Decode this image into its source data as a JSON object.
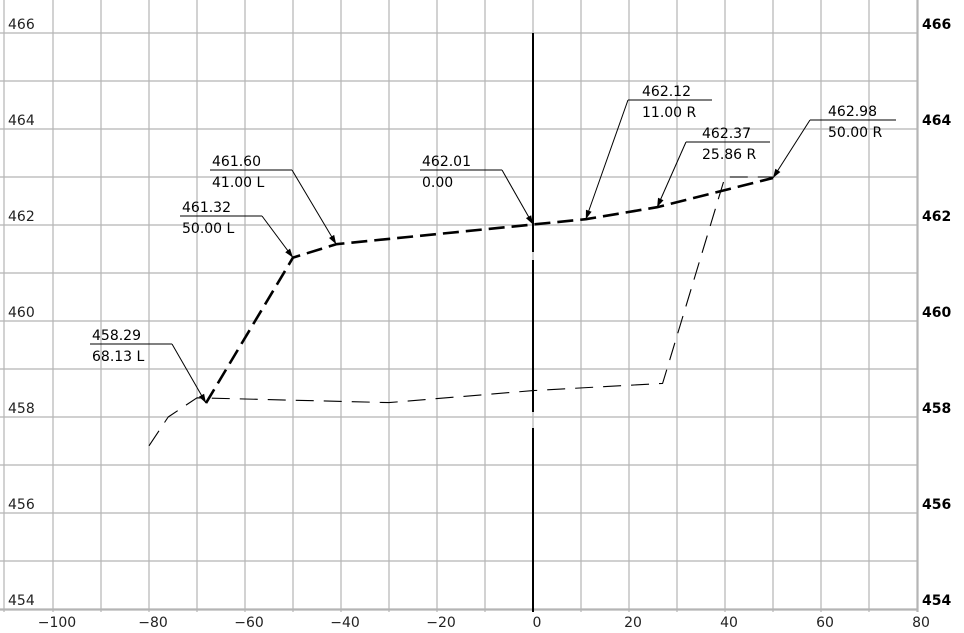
{
  "chart_data": {
    "type": "line",
    "xlim": [
      -100,
      80
    ],
    "ylim": [
      453.6,
      466.3
    ],
    "x_ticks": [
      -100,
      -80,
      -60,
      -40,
      -20,
      0,
      20,
      40,
      60,
      80
    ],
    "x_tick_labels": [
      "−100",
      "−80",
      "−60",
      "−40",
      "−20",
      "0",
      "20",
      "40",
      "60",
      "80"
    ],
    "y_ticks": [
      454,
      456,
      458,
      460,
      462,
      464,
      466
    ],
    "y_tick_labels": [
      "454",
      "456",
      "458",
      "460",
      "462",
      "464",
      "466"
    ],
    "grid": true,
    "centerline_x": 0,
    "series": [
      {
        "style": "heavy-dashed",
        "points": [
          [
            -68.13,
            458.29
          ],
          [
            -50,
            461.32
          ],
          [
            -41,
            461.6
          ],
          [
            0,
            462.01
          ],
          [
            11,
            462.12
          ],
          [
            25.86,
            462.37
          ],
          [
            50,
            462.98
          ]
        ]
      },
      {
        "style": "light-dashed",
        "points": [
          [
            -80,
            457.4
          ],
          [
            -76,
            458.0
          ],
          [
            -70,
            458.4
          ],
          [
            -50,
            458.35
          ],
          [
            -30,
            458.3
          ],
          [
            0,
            458.55
          ],
          [
            27,
            458.7
          ],
          [
            40,
            463.0
          ],
          [
            50,
            463.0
          ]
        ]
      }
    ],
    "annotations": [
      {
        "top": "458.29",
        "bottom": "68.13  L",
        "target": [
          -68.13,
          458.29
        ]
      },
      {
        "top": "461.32",
        "bottom": "50.00  L",
        "target": [
          -50,
          461.32
        ]
      },
      {
        "top": "461.60",
        "bottom": "41.00  L",
        "target": [
          -41,
          461.6
        ]
      },
      {
        "top": "462.01",
        "bottom": "0.00",
        "target": [
          0,
          462.01
        ]
      },
      {
        "top": "462.12",
        "bottom": "11.00  R",
        "target": [
          11,
          462.12
        ]
      },
      {
        "top": "462.37",
        "bottom": "25.86  R",
        "target": [
          25.86,
          462.37
        ]
      },
      {
        "top": "462.98",
        "bottom": "50.00  R",
        "target": [
          50,
          462.98
        ]
      }
    ]
  }
}
